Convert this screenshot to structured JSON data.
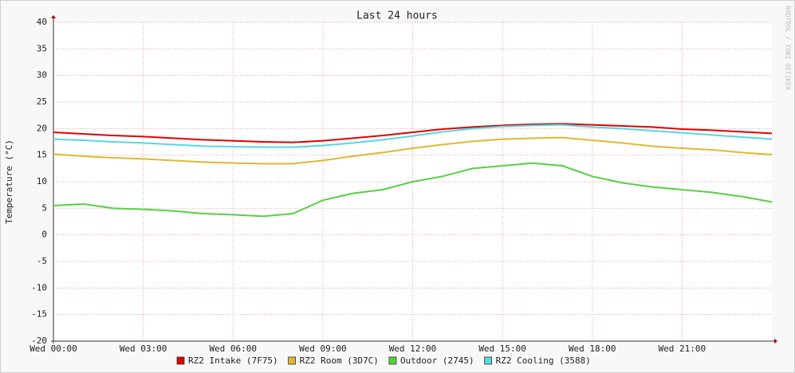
{
  "chart_data": {
    "type": "line",
    "title": "Last 24 hours",
    "y_label": "Temperature (°C)",
    "watermark": "RRDTOOL / TOBI OETIKER",
    "x": [
      0,
      1,
      2,
      3,
      4,
      5,
      6,
      7,
      8,
      9,
      10,
      11,
      12,
      13,
      14,
      15,
      16,
      17,
      18,
      19,
      20,
      21,
      22,
      23,
      24
    ],
    "xlim": [
      0,
      24
    ],
    "xticks": [
      {
        "value": 0,
        "label": "Wed 00:00"
      },
      {
        "value": 3,
        "label": "Wed 03:00"
      },
      {
        "value": 6,
        "label": "Wed 06:00"
      },
      {
        "value": 9,
        "label": "Wed 09:00"
      },
      {
        "value": 12,
        "label": "Wed 12:00"
      },
      {
        "value": 15,
        "label": "Wed 15:00"
      },
      {
        "value": 18,
        "label": "Wed 18:00"
      },
      {
        "value": 21,
        "label": "Wed 21:00"
      }
    ],
    "ylim": [
      -20,
      40
    ],
    "yticks": [
      -20,
      -15,
      -10,
      -5,
      0,
      5,
      10,
      15,
      20,
      25,
      30,
      35,
      40
    ],
    "grid": true,
    "legend": "bottom",
    "series": [
      {
        "name": "RZ2 Intake (7F75)",
        "color": "#e00000",
        "values": [
          19.3,
          19.0,
          18.7,
          18.5,
          18.2,
          17.9,
          17.7,
          17.5,
          17.4,
          17.7,
          18.2,
          18.7,
          19.3,
          19.9,
          20.3,
          20.6,
          20.8,
          20.9,
          20.7,
          20.5,
          20.3,
          19.9,
          19.7,
          19.4,
          19.1
        ]
      },
      {
        "name": "RZ2 Room (3D7C)",
        "color": "#e0b830",
        "values": [
          15.2,
          14.8,
          14.5,
          14.3,
          14.0,
          13.7,
          13.5,
          13.4,
          13.4,
          14.0,
          14.8,
          15.5,
          16.3,
          17.0,
          17.6,
          18.0,
          18.2,
          18.3,
          17.8,
          17.3,
          16.7,
          16.3,
          16.0,
          15.5,
          15.1
        ]
      },
      {
        "name": "Outdoor (2745)",
        "color": "#55d040",
        "values": [
          5.5,
          5.8,
          5.0,
          4.8,
          4.5,
          4.0,
          3.8,
          3.5,
          4.0,
          6.5,
          7.8,
          8.5,
          10.0,
          11.0,
          12.5,
          13.0,
          13.5,
          13.0,
          11.0,
          9.8,
          9.0,
          8.5,
          8.0,
          7.2,
          6.2
        ]
      },
      {
        "name": "RZ2 Cooling (3588)",
        "color": "#55d8e0",
        "values": [
          18.0,
          17.8,
          17.5,
          17.3,
          17.0,
          16.7,
          16.6,
          16.5,
          16.5,
          16.8,
          17.3,
          17.9,
          18.6,
          19.4,
          20.0,
          20.4,
          20.6,
          20.7,
          20.3,
          20.0,
          19.6,
          19.2,
          18.8,
          18.4,
          18.0
        ]
      }
    ]
  }
}
